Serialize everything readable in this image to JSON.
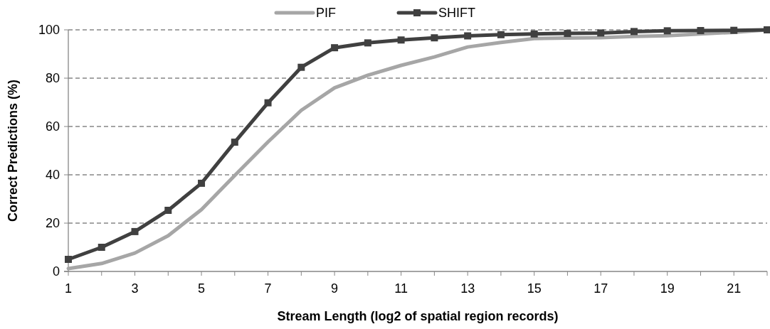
{
  "chart_data": {
    "type": "line",
    "xlabel": "Stream Length (log2 of spatial region records)",
    "ylabel": "Correct Predictions (%)",
    "x": [
      1,
      2,
      3,
      4,
      5,
      6,
      7,
      8,
      9,
      10,
      11,
      12,
      13,
      14,
      15,
      16,
      17,
      18,
      19,
      20,
      21,
      22
    ],
    "xlim": [
      1,
      22
    ],
    "xticks": [
      1,
      {
        "value": 2,
        "label": null
      },
      3,
      {
        "value": 4,
        "label": null
      },
      5,
      {
        "value": 6,
        "label": null
      },
      7,
      {
        "value": 8,
        "label": null
      },
      9,
      {
        "value": 10,
        "label": null
      },
      11,
      {
        "value": 12,
        "label": null
      },
      13,
      {
        "value": 14,
        "label": null
      },
      15,
      {
        "value": 16,
        "label": null
      },
      17,
      {
        "value": 18,
        "label": null
      },
      19,
      {
        "value": 20,
        "label": null
      },
      21,
      {
        "value": 22,
        "label": null
      }
    ],
    "ylim": [
      0,
      100
    ],
    "yticks": [
      0,
      20,
      40,
      60,
      80,
      100
    ],
    "grid": "y",
    "legend": "top",
    "series": [
      {
        "name": "PIF",
        "color": "#a6a6a6",
        "marker": "none",
        "values": [
          1.2,
          3.3,
          7.6,
          14.8,
          25.6,
          39.7,
          53.6,
          66.7,
          76,
          81.2,
          85.3,
          88.8,
          92.9,
          94.8,
          96.4,
          96.6,
          96.8,
          97.3,
          97.6,
          98.3,
          99,
          100
        ]
      },
      {
        "name": "SHIFT",
        "color": "#404040",
        "marker": "square",
        "values": [
          5,
          10,
          16.5,
          25.3,
          36.5,
          53.5,
          69.8,
          84.5,
          92.6,
          94.6,
          95.8,
          96.7,
          97.5,
          98,
          98.3,
          98.5,
          98.7,
          99.3,
          99.6,
          99.7,
          99.8,
          100
        ]
      }
    ]
  }
}
